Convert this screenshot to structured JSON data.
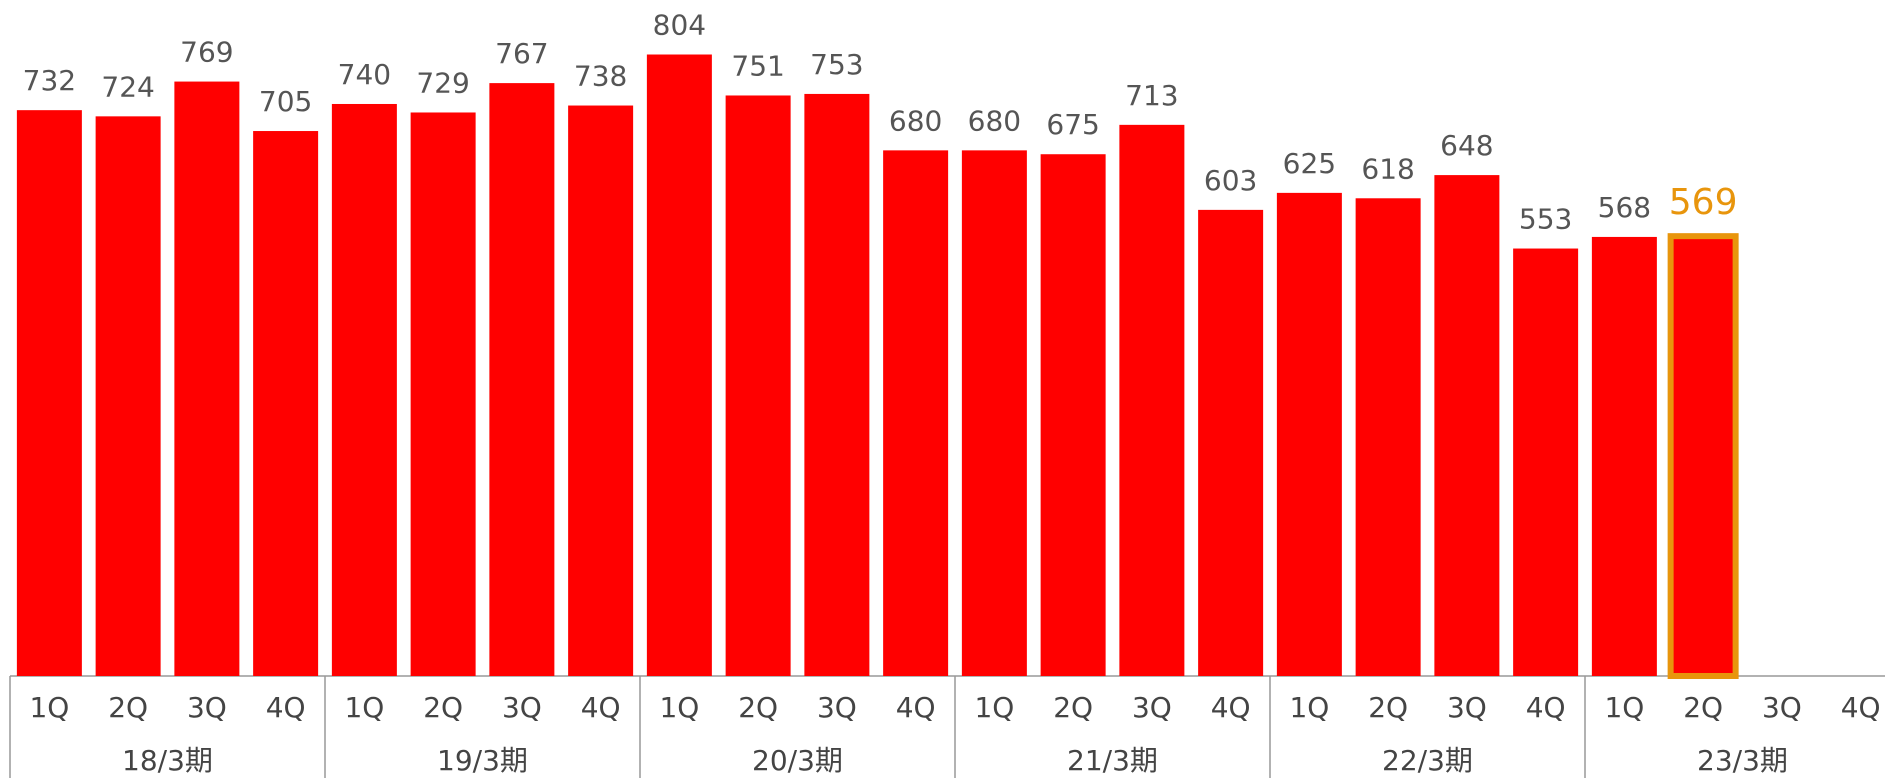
{
  "chart_data": {
    "type": "bar",
    "categories": [
      "1Q",
      "2Q",
      "3Q",
      "4Q",
      "1Q",
      "2Q",
      "3Q",
      "4Q",
      "1Q",
      "2Q",
      "3Q",
      "4Q",
      "1Q",
      "2Q",
      "3Q",
      "4Q",
      "1Q",
      "2Q",
      "3Q",
      "4Q",
      "1Q",
      "2Q",
      "3Q",
      "4Q"
    ],
    "groups": [
      "18/3期",
      "19/3期",
      "20/3期",
      "21/3期",
      "22/3期",
      "23/3期"
    ],
    "values": [
      732,
      724,
      769,
      705,
      740,
      729,
      767,
      738,
      804,
      751,
      753,
      680,
      680,
      675,
      713,
      603,
      625,
      618,
      648,
      553,
      568,
      569,
      null,
      null
    ],
    "color": "#ff0000",
    "highlight": 21,
    "highlight_color": "#e8950c"
  }
}
